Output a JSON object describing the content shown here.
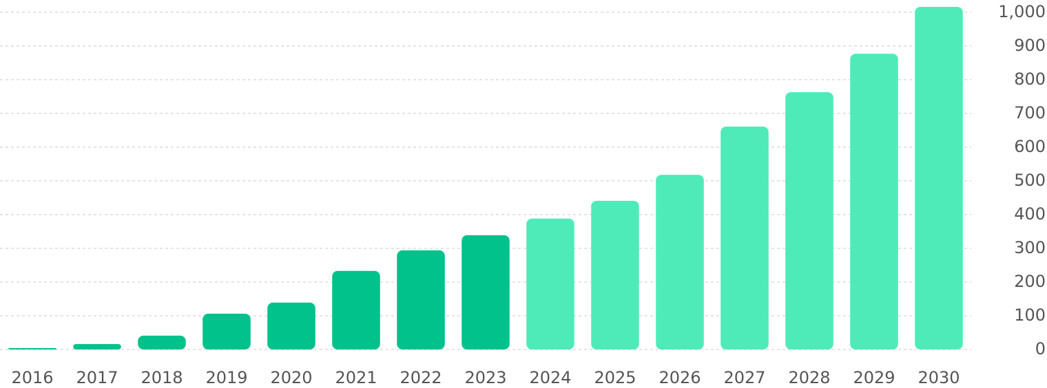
{
  "chart_data": {
    "type": "bar",
    "categories": [
      "2016",
      "2017",
      "2018",
      "2019",
      "2020",
      "2021",
      "2022",
      "2023",
      "2024",
      "2025",
      "2026",
      "2027",
      "2028",
      "2029",
      "2030"
    ],
    "values": [
      4,
      16,
      41,
      106,
      139,
      233,
      294,
      339,
      388,
      441,
      518,
      661,
      763,
      877,
      1016
    ],
    "colors": [
      "#00c28a",
      "#00c28a",
      "#00c28a",
      "#00c28a",
      "#00c28a",
      "#00c28a",
      "#00c28a",
      "#00c28a",
      "#4eebb9",
      "#4eebb9",
      "#4eebb9",
      "#4eebb9",
      "#4eebb9",
      "#4eebb9",
      "#4eebb9"
    ],
    "ylim": [
      0,
      1020
    ],
    "yticks": [
      0,
      100,
      200,
      300,
      400,
      500,
      600,
      700,
      800,
      900,
      {
        "value": 1000,
        "label": "1,000"
      }
    ],
    "grid": true,
    "y_axis_side": "right"
  }
}
